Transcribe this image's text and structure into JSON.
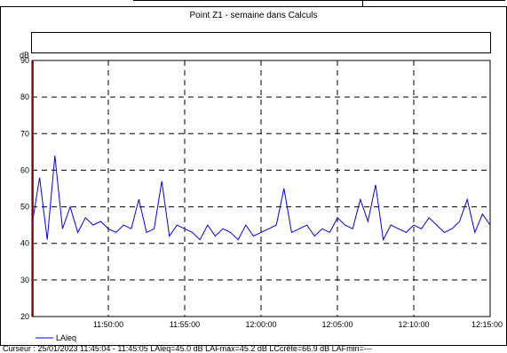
{
  "title": "Point Z1 - semaine dans Calculs",
  "status_line": "Curseur : 25/01/2023 11:45:04 - 11:45:05  LAleq=45.0 dB  LAFmax=45.2 dB  LCcrête=66.9 dB  LAFmin=---",
  "colors": {
    "series": "#0000ee",
    "cursor": "#cc0000",
    "grid": "#000000"
  },
  "chart_data": {
    "type": "line",
    "title": "Point Z1 - semaine dans Calculs",
    "ylabel": "dB",
    "xlabel": "",
    "ylim": [
      20,
      90
    ],
    "xlim": [
      "11:45:00",
      "12:15:00"
    ],
    "y_ticks": [
      "20",
      "30",
      "40",
      "50",
      "60",
      "70",
      "80",
      "90"
    ],
    "x_ticks": [
      "11:50:00",
      "11:55:00",
      "12:00:00",
      "12:05:00",
      "12:10:00",
      "12:15:00"
    ],
    "grid": "dashed",
    "legend": "bottom-left",
    "cursor_x": "11:45:04",
    "series": [
      {
        "name": "LAleq",
        "color": "#0000ee",
        "x": [
          "11:45:00",
          "11:45:30",
          "11:46:00",
          "11:46:30",
          "11:47:00",
          "11:47:30",
          "11:48:00",
          "11:48:30",
          "11:49:00",
          "11:49:30",
          "11:50:00",
          "11:50:30",
          "11:51:00",
          "11:51:30",
          "11:52:00",
          "11:52:30",
          "11:53:00",
          "11:53:30",
          "11:54:00",
          "11:54:30",
          "11:55:00",
          "11:55:30",
          "11:56:00",
          "11:56:30",
          "11:57:00",
          "11:57:30",
          "11:58:00",
          "11:58:30",
          "11:59:00",
          "11:59:30",
          "12:00:00",
          "12:00:30",
          "12:01:00",
          "12:01:30",
          "12:02:00",
          "12:02:30",
          "12:03:00",
          "12:03:30",
          "12:04:00",
          "12:04:30",
          "12:05:00",
          "12:05:30",
          "12:06:00",
          "12:06:30",
          "12:07:00",
          "12:07:30",
          "12:08:00",
          "12:08:30",
          "12:09:00",
          "12:09:30",
          "12:10:00",
          "12:10:30",
          "12:11:00",
          "12:11:30",
          "12:12:00",
          "12:12:30",
          "12:13:00",
          "12:13:30",
          "12:14:00",
          "12:14:30",
          "12:15:00"
        ],
        "values": [
          45,
          58,
          41,
          64,
          44,
          50,
          43,
          47,
          45,
          46,
          44,
          43,
          45,
          44,
          52,
          43,
          44,
          57,
          42,
          45,
          44,
          43,
          41,
          45,
          42,
          44,
          43,
          41,
          45,
          42,
          43,
          44,
          45,
          55,
          43,
          44,
          45,
          42,
          44,
          43,
          47,
          45,
          44,
          52,
          46,
          56,
          41,
          45,
          44,
          43,
          45,
          44,
          47,
          45,
          43,
          44,
          46,
          52,
          43,
          48,
          45
        ]
      }
    ]
  }
}
